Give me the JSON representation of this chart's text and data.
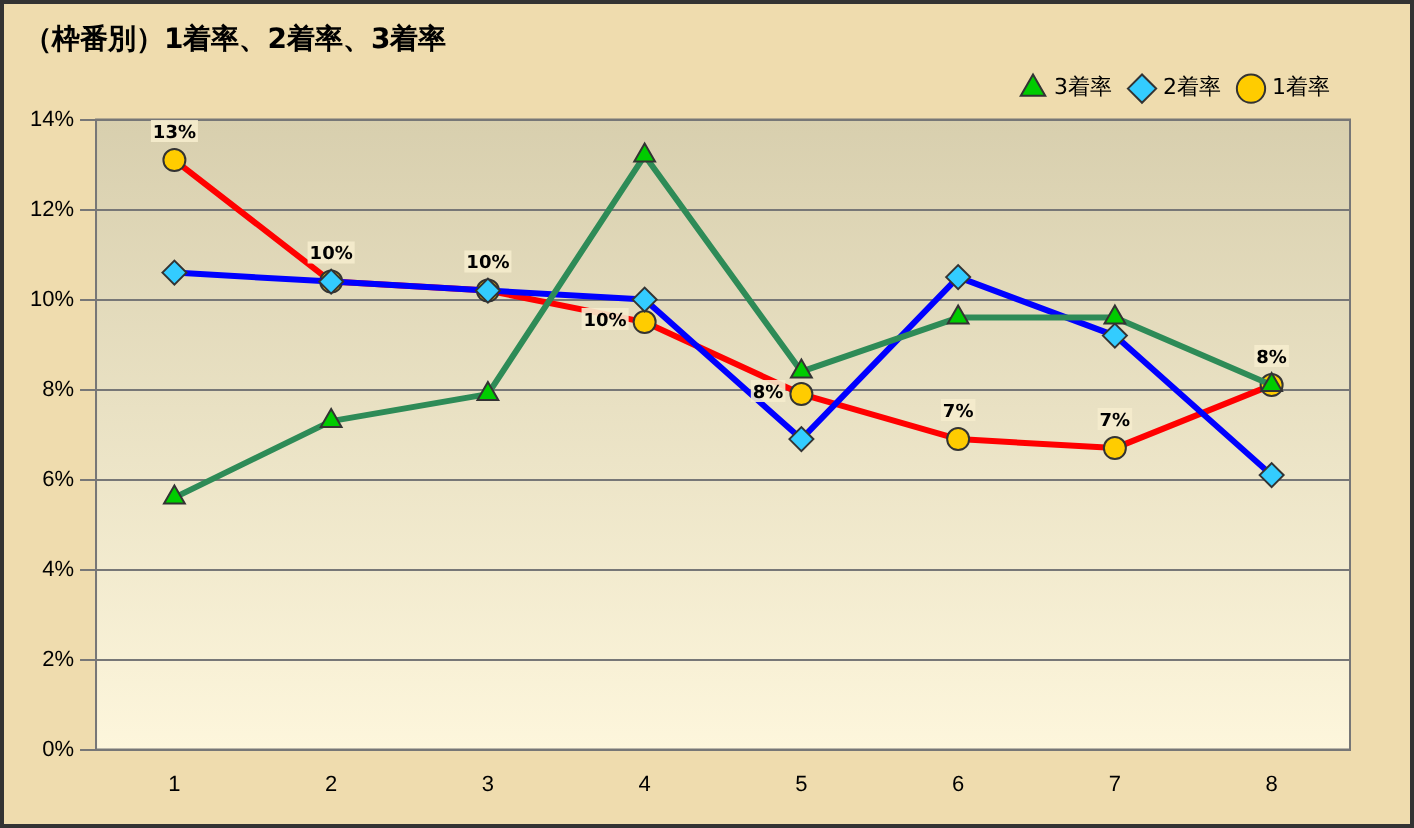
{
  "chart_data": {
    "type": "line",
    "title": "（枠番別）1着率、2着率、3着率",
    "categories": [
      "1",
      "2",
      "3",
      "4",
      "5",
      "6",
      "7",
      "8"
    ],
    "series": [
      {
        "name": "3着率",
        "color": "#2e8b57",
        "marker": "triangle",
        "values": [
          5.6,
          7.3,
          7.9,
          13.2,
          8.4,
          9.6,
          9.6,
          8.1
        ]
      },
      {
        "name": "2着率",
        "color": "#0000ff",
        "marker": "diamond",
        "values": [
          10.6,
          10.4,
          10.2,
          10.0,
          6.9,
          10.5,
          9.2,
          6.1
        ]
      },
      {
        "name": "1着率",
        "color": "#ff0000",
        "marker": "circle",
        "values": [
          13.1,
          10.4,
          10.2,
          9.5,
          7.9,
          6.9,
          6.7,
          8.1
        ],
        "value_labels": [
          "13%",
          "10%",
          "10%",
          "10%",
          "8%",
          "7%",
          "7%",
          "8%"
        ]
      }
    ],
    "ylim": [
      0,
      14
    ],
    "yticks": [
      {
        "value": 0,
        "label": "0%"
      },
      {
        "value": 2,
        "label": "2%"
      },
      {
        "value": 4,
        "label": "4%"
      },
      {
        "value": 6,
        "label": "6%"
      },
      {
        "value": 8,
        "label": "8%"
      },
      {
        "value": 10,
        "label": "10%"
      },
      {
        "value": 12,
        "label": "12%"
      },
      {
        "value": 14,
        "label": "14%"
      }
    ],
    "grid": "y",
    "legend": "top right",
    "line_style": "solid"
  }
}
